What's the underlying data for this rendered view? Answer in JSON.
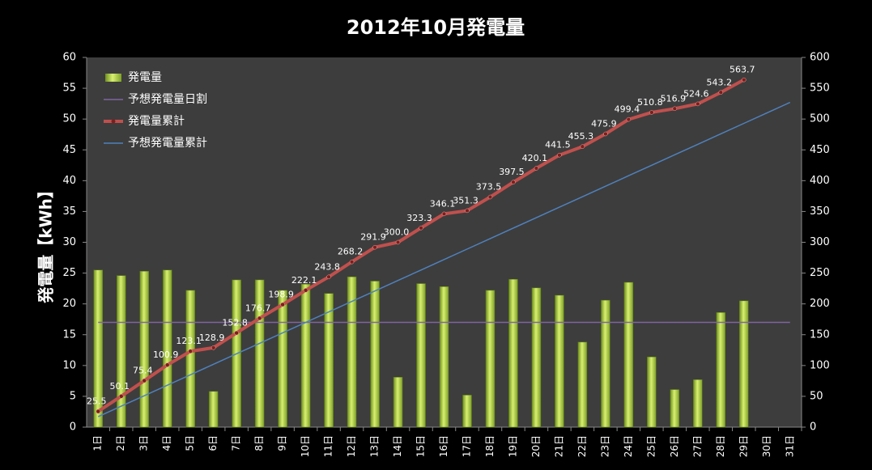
{
  "chart_data": {
    "type": "bar-line",
    "title": "2012年10月発電量",
    "y_label": "発電量【kWh】",
    "categories": [
      "1日",
      "2日",
      "3日",
      "4日",
      "5日",
      "6日",
      "7日",
      "8日",
      "9日",
      "10日",
      "11日",
      "12日",
      "13日",
      "14日",
      "15日",
      "16日",
      "17日",
      "18日",
      "19日",
      "20日",
      "21日",
      "22日",
      "23日",
      "24日",
      "25日",
      "26日",
      "27日",
      "28日",
      "29日",
      "30日",
      "31日"
    ],
    "ylim": [
      0,
      60
    ],
    "yticks": [
      0,
      5,
      10,
      15,
      20,
      25,
      30,
      35,
      40,
      45,
      50,
      55,
      60
    ],
    "y2lim": [
      0,
      600
    ],
    "y2ticks": [
      0,
      50,
      100,
      150,
      200,
      250,
      300,
      350,
      400,
      450,
      500,
      550,
      600
    ],
    "grid": false,
    "legend": "upper-left",
    "series": [
      {
        "name": "発電量",
        "kind": "bar",
        "color": "#9acd32",
        "values": [
          25.5,
          24.6,
          25.3,
          25.5,
          22.2,
          5.8,
          23.9,
          23.9,
          22.2,
          23.2,
          21.7,
          24.4,
          23.7,
          8.1,
          23.3,
          22.8,
          5.2,
          22.2,
          24.0,
          22.6,
          21.4,
          13.8,
          20.6,
          23.5,
          11.4,
          6.1,
          7.7,
          18.6,
          20.5,
          null,
          null
        ]
      },
      {
        "name": "予想発電量日割",
        "kind": "line",
        "color": "#8064a2",
        "values": [
          17,
          17,
          17,
          17,
          17,
          17,
          17,
          17,
          17,
          17,
          17,
          17,
          17,
          17,
          17,
          17,
          17,
          17,
          17,
          17,
          17,
          17,
          17,
          17,
          17,
          17,
          17,
          17,
          17,
          17,
          17
        ]
      },
      {
        "name": "発電量累計",
        "kind": "line",
        "axis": "y2",
        "color": "#c0504d",
        "markers": true,
        "values": [
          25.5,
          50.1,
          75.4,
          100.9,
          123.1,
          128.9,
          152.8,
          176.7,
          198.9,
          222.1,
          243.8,
          268.2,
          291.9,
          300.0,
          323.3,
          346.1,
          351.3,
          373.5,
          397.5,
          420.1,
          441.5,
          455.3,
          475.9,
          499.4,
          510.8,
          516.9,
          524.6,
          543.2,
          563.7,
          null,
          null
        ],
        "value_labels": [
          "25.5",
          "50.1",
          "75.4",
          "100.9",
          "123.1",
          "128.9",
          "152.8",
          "176.7",
          "198.9",
          "222.1",
          "243.8",
          "268.2",
          "291.9",
          "300.0",
          "323.3",
          "346.1",
          "351.3",
          "373.5",
          "397.5",
          "420.1",
          "441.5",
          "455.3",
          "475.9",
          "499.4",
          "510.8",
          "516.9",
          "524.6",
          "543.2",
          "563.7",
          null,
          null
        ]
      },
      {
        "name": "予想発電量累計",
        "kind": "line",
        "axis": "y2",
        "color": "#4f81bd",
        "values": [
          17,
          34,
          51,
          68,
          85,
          102,
          119,
          136,
          153,
          170,
          187,
          204,
          221,
          238,
          255,
          272,
          289,
          306,
          323,
          340,
          357,
          374,
          391,
          408,
          425,
          442,
          459,
          476,
          493,
          510,
          527
        ]
      }
    ]
  }
}
